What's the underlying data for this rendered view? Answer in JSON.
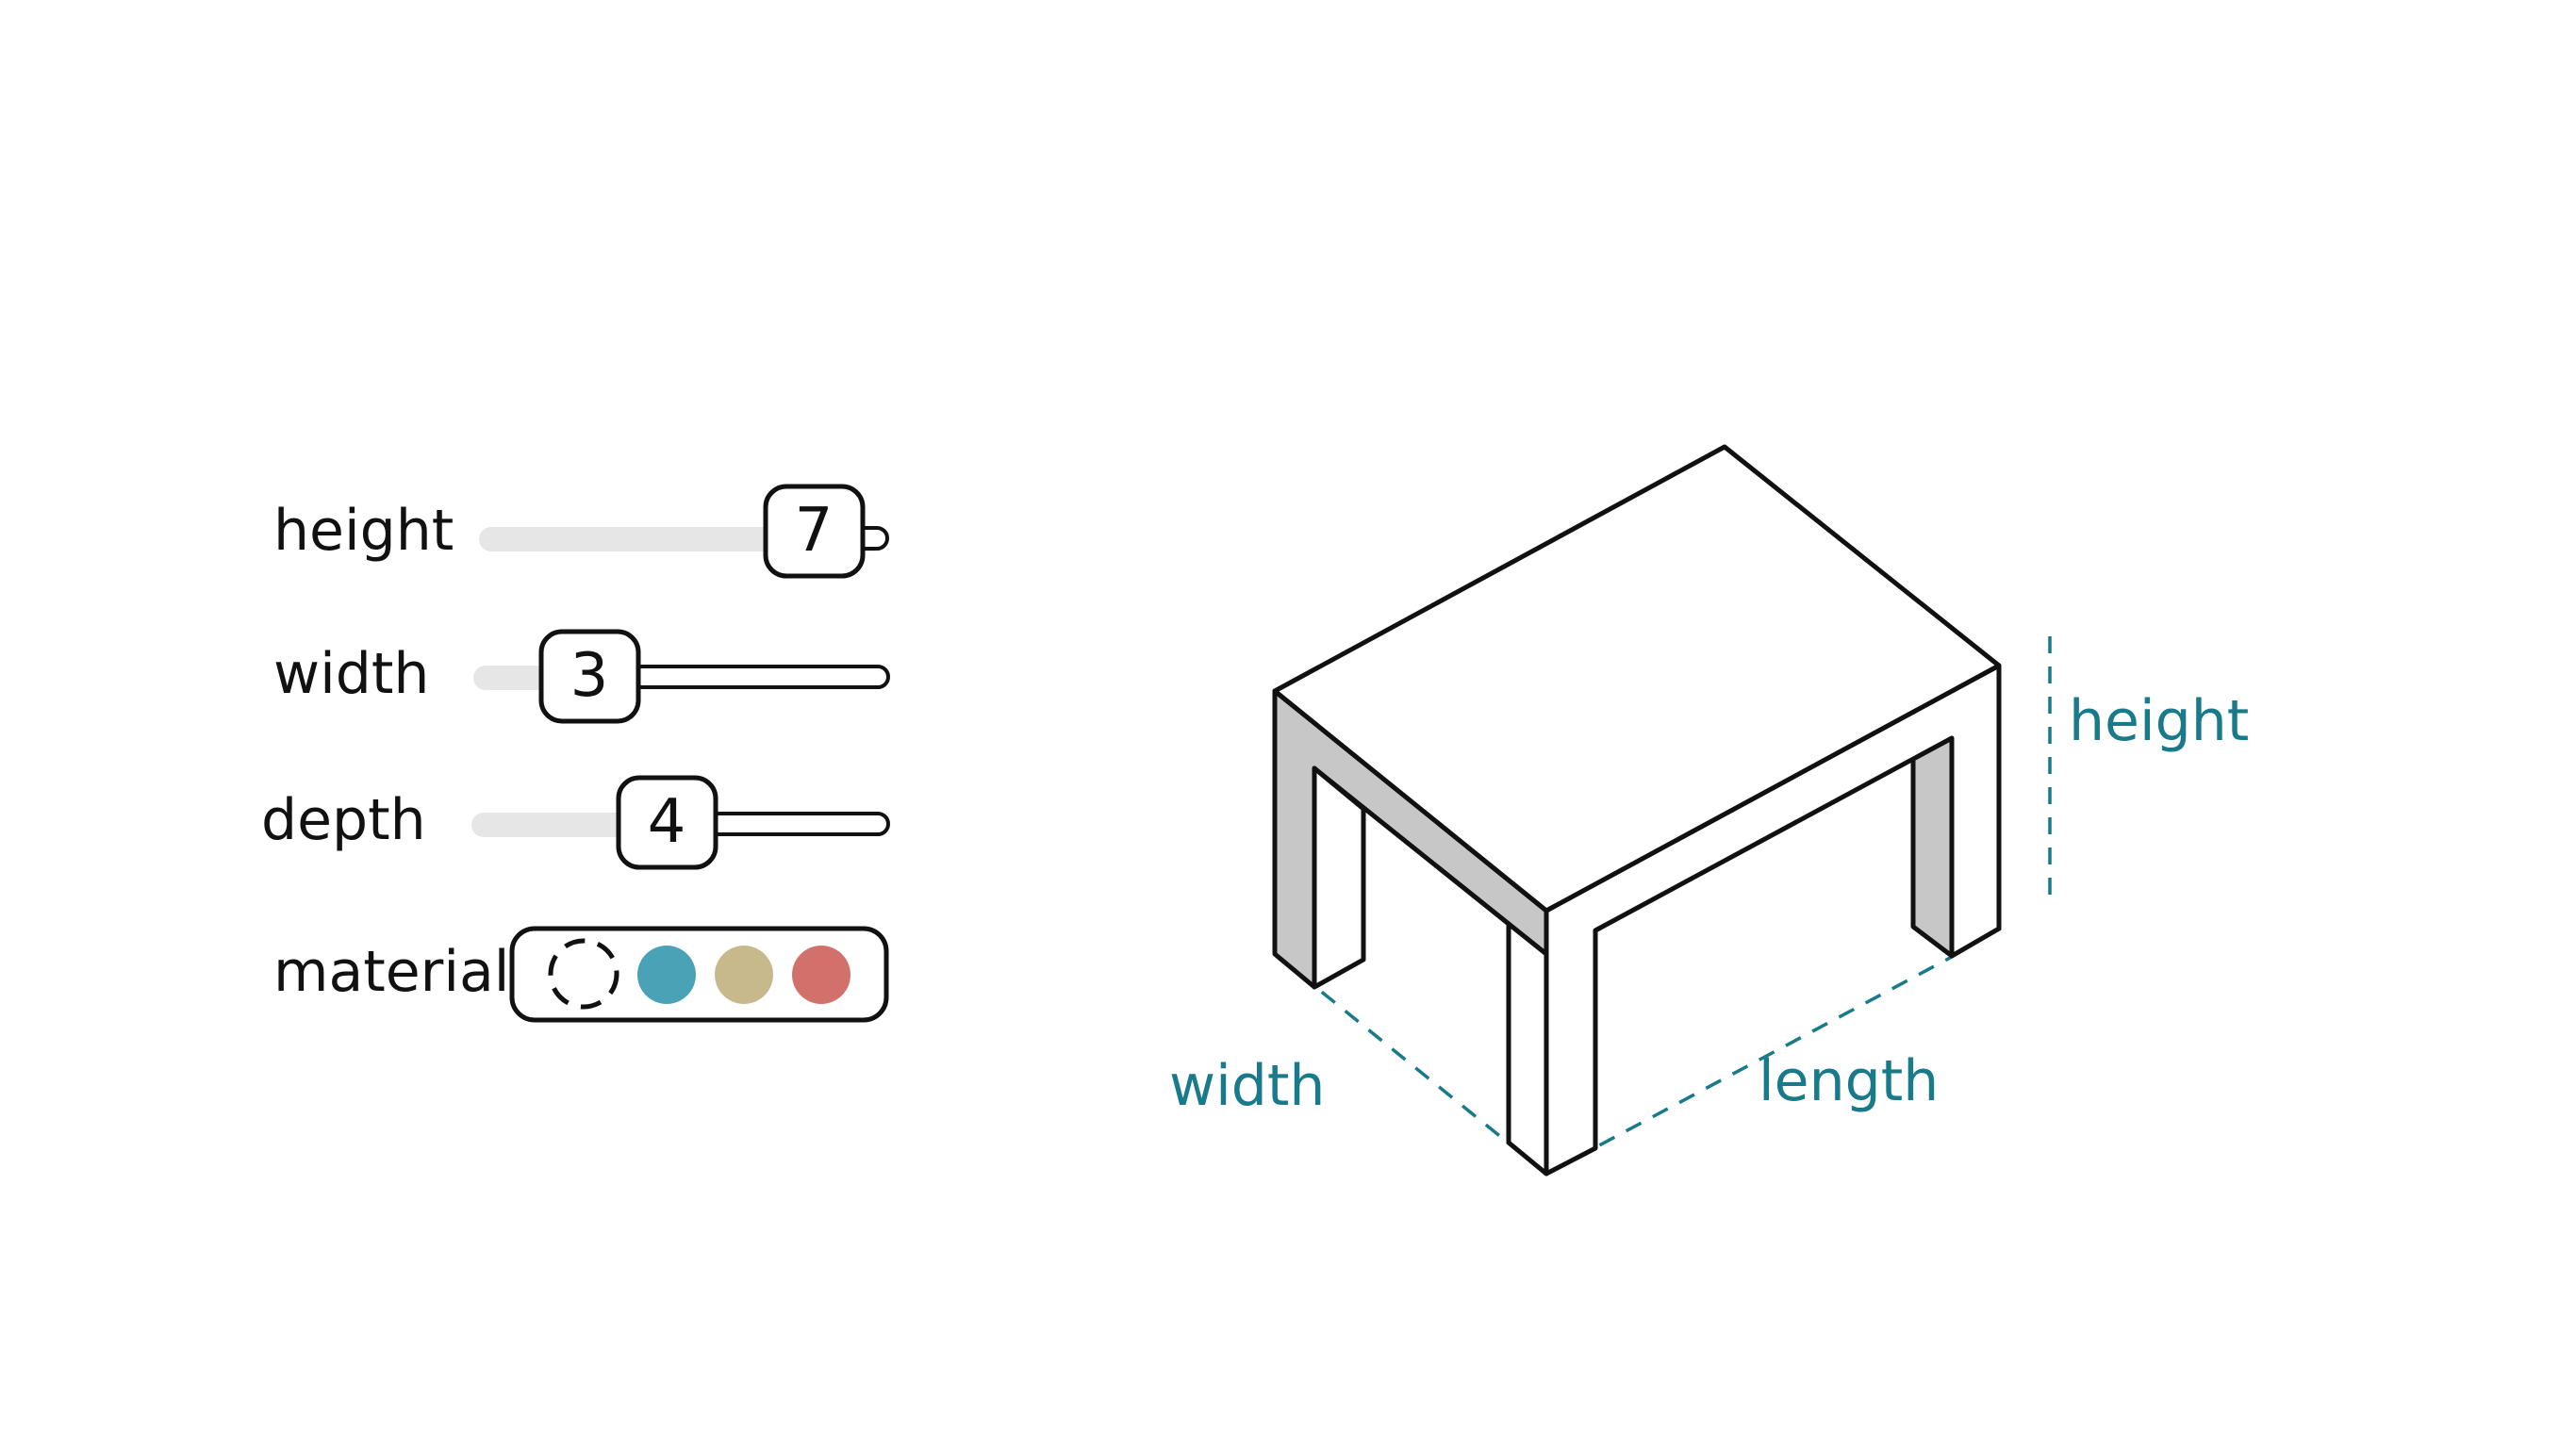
{
  "controls": {
    "height": {
      "label": "height",
      "value": "7",
      "fraction": 0.86
    },
    "width": {
      "label": "width",
      "value": "3",
      "fraction": 0.12
    },
    "depth": {
      "label": "depth",
      "value": "4",
      "fraction": 0.38
    },
    "material": {
      "label": "material",
      "swatches": [
        {
          "name": "none",
          "color": ""
        },
        {
          "name": "teal",
          "color": "#49a2b5"
        },
        {
          "name": "sand",
          "color": "#c8b98d"
        },
        {
          "name": "coral",
          "color": "#d2716b"
        }
      ],
      "selected": "none"
    }
  },
  "diagram": {
    "accent_color": "#187a8a",
    "labels": {
      "height": "height",
      "width": "width",
      "length": "length"
    }
  }
}
